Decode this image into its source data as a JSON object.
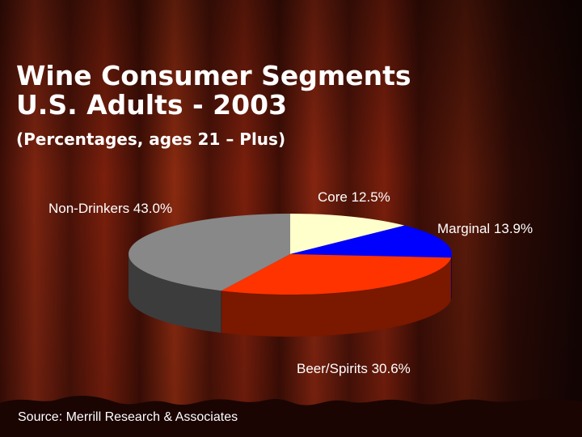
{
  "slide": {
    "title_line1": "Wine Consumer Segments",
    "title_line2": "U.S. Adults - 2003",
    "subtitle": "(Percentages, ages 21 – Plus)",
    "source": "Source: Merrill Research & Associates"
  },
  "colors": {
    "curtain_dark": "#2a0a05",
    "curtain_red": "#7a1a0a",
    "text": "#ffffff"
  },
  "chart_data": {
    "type": "pie",
    "title": "Wine Consumer Segments U.S. Adults - 2003",
    "subtitle": "(Percentages, ages 21 – Plus)",
    "three_d": true,
    "slices": [
      {
        "label": "Core 12.5%",
        "value": 12.5,
        "color": "#ffffcc",
        "side": "#cccc99"
      },
      {
        "label": "Marginal 13.9%",
        "value": 13.9,
        "color": "#0000ff",
        "side": "#00008a"
      },
      {
        "label": "Beer/Spirits 30.6%",
        "value": 30.6,
        "color": "#ff3300",
        "side": "#7a1800"
      },
      {
        "label": "Non-Drinkers 43.0%",
        "value": 43.0,
        "color": "#888888",
        "side": "#3c3c3c"
      }
    ]
  }
}
